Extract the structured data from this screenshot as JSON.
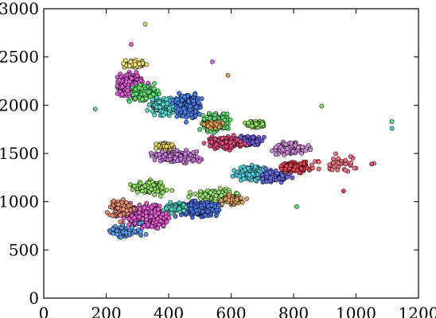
{
  "chart_data": {
    "type": "scatter",
    "title": "",
    "xlabel": "",
    "ylabel": "",
    "xlim": [
      0,
      1200
    ],
    "ylim": [
      0,
      3000
    ],
    "x_ticks": [
      {
        "value": 0,
        "label": "0"
      },
      {
        "value": 200,
        "label": "200"
      },
      {
        "value": 400,
        "label": "400"
      },
      {
        "value": 600,
        "label": "600"
      },
      {
        "value": 800,
        "label": "800"
      },
      {
        "value": 1000,
        "label": "1000"
      },
      {
        "value": 1200,
        "label": "1200"
      }
    ],
    "y_ticks": [
      {
        "value": 0,
        "label": "0"
      },
      {
        "value": 500,
        "label": "500"
      },
      {
        "value": 1000,
        "label": "1000"
      },
      {
        "value": 1500,
        "label": "1500"
      },
      {
        "value": 2000,
        "label": "2000"
      },
      {
        "value": 2500,
        "label": "2500"
      },
      {
        "value": 3000,
        "label": "3000"
      }
    ],
    "grid": false,
    "legend": "none",
    "series": [
      {
        "color": "#e05ad8",
        "x_range": [
          220,
          340
        ],
        "y_range": [
          2050,
          2350
        ],
        "count": 380
      },
      {
        "color": "#f0e070",
        "x_range": [
          240,
          340
        ],
        "y_range": [
          2380,
          2480
        ],
        "count": 60
      },
      {
        "color": "#60e070",
        "x_range": [
          260,
          380
        ],
        "y_range": [
          2000,
          2250
        ],
        "count": 130
      },
      {
        "color": "#50d8d0",
        "x_range": [
          320,
          450
        ],
        "y_range": [
          1880,
          2100
        ],
        "count": 200
      },
      {
        "color": "#4a7ee8",
        "x_range": [
          400,
          520
        ],
        "y_range": [
          1820,
          2150
        ],
        "count": 220
      },
      {
        "color": "#60d870",
        "x_range": [
          480,
          620
        ],
        "y_range": [
          1700,
          1950
        ],
        "count": 160
      },
      {
        "color": "#e0a050",
        "x_range": [
          500,
          580
        ],
        "y_range": [
          1750,
          1850
        ],
        "count": 50
      },
      {
        "color": "#90e060",
        "x_range": [
          640,
          720
        ],
        "y_range": [
          1750,
          1850
        ],
        "count": 60
      },
      {
        "color": "#7060e0",
        "x_range": [
          600,
          720
        ],
        "y_range": [
          1550,
          1700
        ],
        "count": 110
      },
      {
        "color": "#d08ad8",
        "x_range": [
          700,
          880
        ],
        "y_range": [
          1450,
          1650
        ],
        "count": 90
      },
      {
        "color": "#e04a78",
        "x_range": [
          500,
          660
        ],
        "y_range": [
          1520,
          1700
        ],
        "count": 120
      },
      {
        "color": "#c87ad8",
        "x_range": [
          330,
          520
        ],
        "y_range": [
          1380,
          1560
        ],
        "count": 150
      },
      {
        "color": "#e8d060",
        "x_range": [
          340,
          430
        ],
        "y_range": [
          1540,
          1620
        ],
        "count": 60
      },
      {
        "color": "#e04050",
        "x_range": [
          740,
          880
        ],
        "y_range": [
          1280,
          1440
        ],
        "count": 140
      },
      {
        "color": "#f07080",
        "x_range": [
          820,
          1060
        ],
        "y_range": [
          1280,
          1520
        ],
        "count": 40
      },
      {
        "color": "#50c8d8",
        "x_range": [
          600,
          740
        ],
        "y_range": [
          1180,
          1400
        ],
        "count": 170
      },
      {
        "color": "#6a6ae8",
        "x_range": [
          680,
          800
        ],
        "y_range": [
          1180,
          1350
        ],
        "count": 100
      },
      {
        "color": "#90e060",
        "x_range": [
          260,
          420
        ],
        "y_range": [
          1050,
          1250
        ],
        "count": 120
      },
      {
        "color": "#9ae070",
        "x_range": [
          460,
          640
        ],
        "y_range": [
          950,
          1150
        ],
        "count": 170
      },
      {
        "color": "#e0a060",
        "x_range": [
          560,
          660
        ],
        "y_range": [
          950,
          1080
        ],
        "count": 80
      },
      {
        "color": "#4a70e0",
        "x_range": [
          410,
          580
        ],
        "y_range": [
          820,
          1040
        ],
        "count": 200
      },
      {
        "color": "#e05ad0",
        "x_range": [
          230,
          420
        ],
        "y_range": [
          700,
          1000
        ],
        "count": 380
      },
      {
        "color": "#e88a70",
        "x_range": [
          200,
          300
        ],
        "y_range": [
          780,
          1080
        ],
        "count": 60
      },
      {
        "color": "#5a9ae8",
        "x_range": [
          190,
          330
        ],
        "y_range": [
          600,
          800
        ],
        "count": 80
      },
      {
        "color": "#50d0c0",
        "x_range": [
          370,
          470
        ],
        "y_range": [
          880,
          1000
        ],
        "count": 90
      }
    ],
    "outliers": [
      {
        "x": 325,
        "y": 2840,
        "color": "#e8d060"
      },
      {
        "x": 1115,
        "y": 1830,
        "color": "#60e080"
      },
      {
        "x": 1115,
        "y": 1760,
        "color": "#50d0c8"
      },
      {
        "x": 165,
        "y": 1960,
        "color": "#60e070"
      },
      {
        "x": 1050,
        "y": 1390,
        "color": "#e05070"
      },
      {
        "x": 960,
        "y": 1110,
        "color": "#e04050"
      },
      {
        "x": 890,
        "y": 1990,
        "color": "#90e060"
      },
      {
        "x": 540,
        "y": 2450,
        "color": "#d070e0"
      },
      {
        "x": 590,
        "y": 2310,
        "color": "#e0a050"
      },
      {
        "x": 280,
        "y": 2630,
        "color": "#e05ad8"
      },
      {
        "x": 810,
        "y": 950,
        "color": "#60e070"
      }
    ]
  }
}
